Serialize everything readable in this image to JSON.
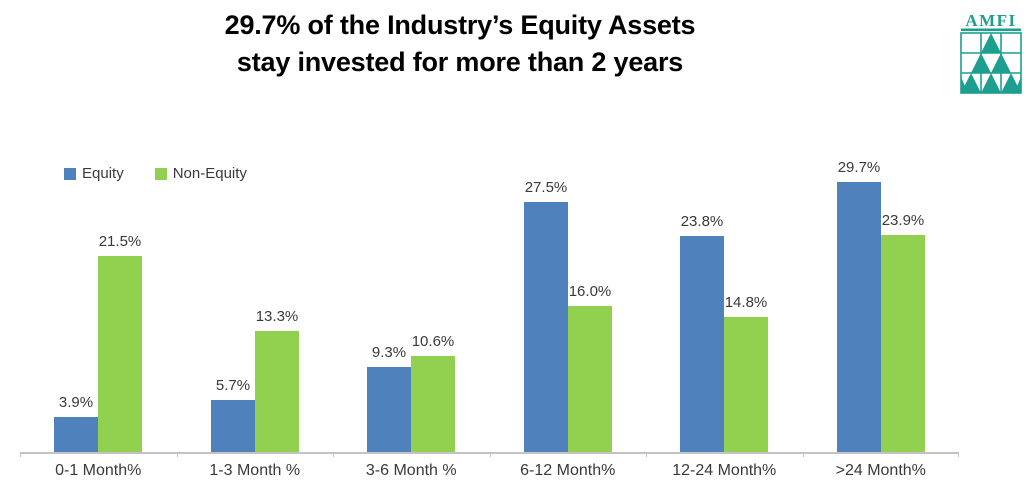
{
  "title": {
    "line1": "29.7% of the Industry’s Equity Assets",
    "line2": "stay invested for more than 2 years"
  },
  "logo": {
    "text": "AMFI",
    "color": "#1e9e8f"
  },
  "legend": [
    {
      "label": "Equity",
      "color": "#4f81bd"
    },
    {
      "label": "Non-Equity",
      "color": "#92d050"
    }
  ],
  "chart_data": {
    "type": "bar",
    "title": "29.7% of the Industry’s Equity Assets stay invested for more than 2 years",
    "categories": [
      "0-1 Month%",
      "1-3 Month %",
      "3-6 Month %",
      "6-12 Month%",
      "12-24 Month%",
      ">24 Month%"
    ],
    "series": [
      {
        "name": "Equity",
        "color": "#4f81bd",
        "values": [
          3.9,
          5.7,
          9.3,
          27.5,
          23.8,
          29.7
        ]
      },
      {
        "name": "Non-Equity",
        "color": "#92d050",
        "values": [
          21.5,
          13.3,
          10.6,
          16.0,
          14.8,
          23.9
        ]
      }
    ],
    "data_labels": [
      [
        "3.9%",
        "5.7%",
        "9.3%",
        "27.5%",
        "23.8%",
        "29.7%"
      ],
      [
        "21.5%",
        "13.3%",
        "10.6%",
        "16.0%",
        "14.8%",
        "23.9%"
      ]
    ],
    "xlabel": "",
    "ylabel": "",
    "ylim": [
      0,
      33.2
    ],
    "grid": false,
    "legend_position": "top-left",
    "axis_color": "#c3c3c3",
    "label_color": "#3a3a3a"
  }
}
